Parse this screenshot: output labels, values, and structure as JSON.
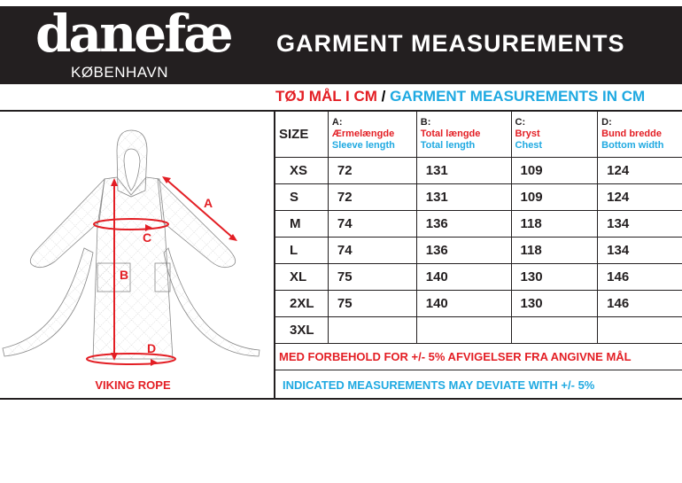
{
  "header": {
    "brand": "danefæ",
    "city": "KØBENHAVN",
    "title": "GARMENT MEASUREMENTS"
  },
  "subtitle": {
    "danish": "TØJ MÅL I CM",
    "separator": "/",
    "english": "GARMENT MEASUREMENTS IN CM"
  },
  "colors": {
    "red": "#e31e24",
    "blue": "#1fa9e1",
    "dark": "#231f20"
  },
  "figure": {
    "name": "VIKING ROPE",
    "labels": {
      "a": "A",
      "b": "B",
      "c": "C",
      "d": "D"
    }
  },
  "table": {
    "size_header": "SIZE",
    "columns": [
      {
        "letter": "A:",
        "danish": "Ærmelængde",
        "english": "Sleeve length"
      },
      {
        "letter": "B:",
        "danish": "Total længde",
        "english": "Total length"
      },
      {
        "letter": "C:",
        "danish": "Bryst",
        "english": "Chest"
      },
      {
        "letter": "D:",
        "danish": "Bund bredde",
        "english": "Bottom width"
      }
    ],
    "rows": [
      {
        "size": "XS",
        "values": [
          "72",
          "131",
          "109",
          "124"
        ]
      },
      {
        "size": "S",
        "values": [
          "72",
          "131",
          "109",
          "124"
        ]
      },
      {
        "size": "M",
        "values": [
          "74",
          "136",
          "118",
          "134"
        ]
      },
      {
        "size": "L",
        "values": [
          "74",
          "136",
          "118",
          "134"
        ]
      },
      {
        "size": "XL",
        "values": [
          "75",
          "140",
          "130",
          "146"
        ]
      },
      {
        "size": "2XL",
        "values": [
          "75",
          "140",
          "130",
          "146"
        ]
      },
      {
        "size": "3XL",
        "values": [
          "",
          "",
          "",
          ""
        ]
      }
    ],
    "note_danish": "MED FORBEHOLD FOR +/- 5% AFVIGELSER FRA ANGIVNE MÅL",
    "note_english": "INDICATED MEASUREMENTS MAY DEVIATE WITH +/- 5%"
  }
}
